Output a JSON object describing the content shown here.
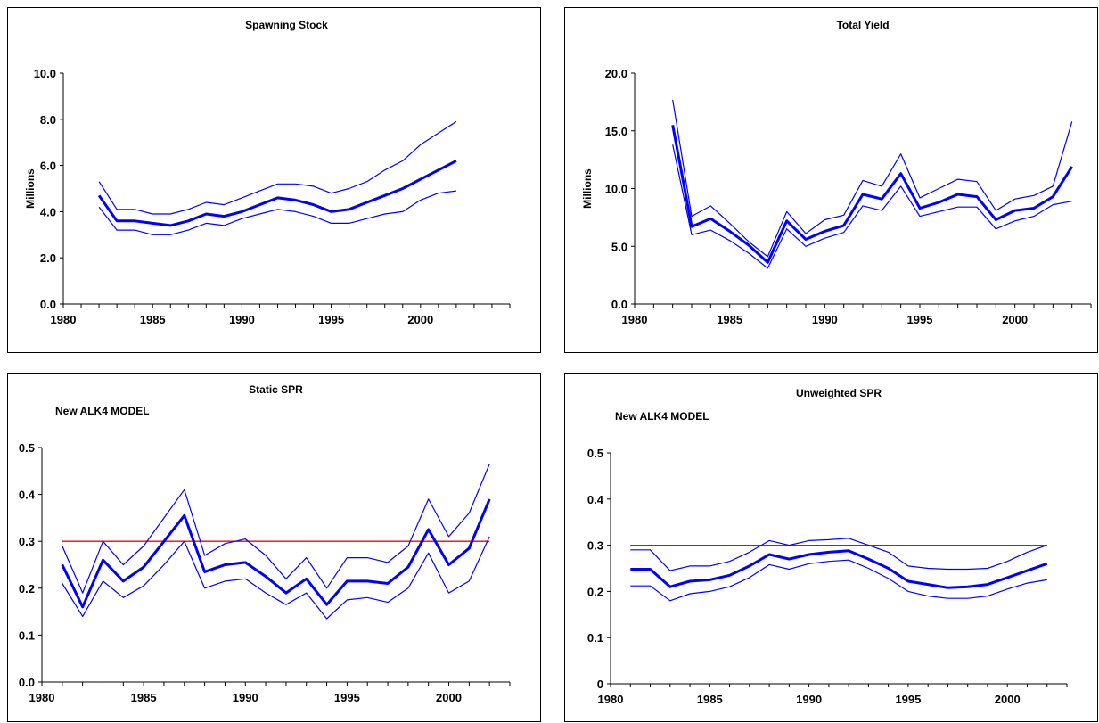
{
  "chart_data": [
    {
      "type": "line",
      "title": "Spawning Stock",
      "ylabel": "Millions",
      "annotation": "",
      "xlim": [
        1980,
        2005
      ],
      "ylim": [
        0,
        10
      ],
      "xticks": [
        1980,
        1985,
        1990,
        1995,
        2000
      ],
      "yticks": [
        "0.0",
        "2.0",
        "4.0",
        "6.0",
        "8.0",
        "10.0"
      ],
      "x": [
        1982,
        1983,
        1984,
        1985,
        1986,
        1987,
        1988,
        1989,
        1990,
        1991,
        1992,
        1993,
        1994,
        1995,
        1996,
        1997,
        1998,
        1999,
        2000,
        2001,
        2002
      ],
      "series": [
        {
          "role": "upper",
          "color": "#0000ff",
          "width": 1.2,
          "values": [
            5.3,
            4.1,
            4.1,
            3.9,
            3.9,
            4.1,
            4.4,
            4.3,
            4.6,
            4.9,
            5.2,
            5.2,
            5.1,
            4.8,
            5.0,
            5.3,
            5.8,
            6.2,
            6.9,
            7.4,
            7.9
          ]
        },
        {
          "role": "estimate",
          "color": "#0000ff",
          "width": 3,
          "values": [
            4.7,
            3.6,
            3.6,
            3.5,
            3.4,
            3.6,
            3.9,
            3.8,
            4.0,
            4.3,
            4.6,
            4.5,
            4.3,
            4.0,
            4.1,
            4.4,
            4.7,
            5.0,
            5.4,
            5.8,
            6.2
          ]
        },
        {
          "role": "lower",
          "color": "#0000ff",
          "width": 1.2,
          "values": [
            4.2,
            3.2,
            3.2,
            3.0,
            3.0,
            3.2,
            3.5,
            3.4,
            3.7,
            3.9,
            4.1,
            4.0,
            3.8,
            3.5,
            3.5,
            3.7,
            3.9,
            4.0,
            4.5,
            4.8,
            4.9
          ]
        }
      ]
    },
    {
      "type": "line",
      "title": "Total Yield",
      "ylabel": "Millions",
      "annotation": "",
      "xlim": [
        1980,
        2004
      ],
      "ylim": [
        0,
        20
      ],
      "xticks": [
        1980,
        1985,
        1990,
        1995,
        2000
      ],
      "yticks": [
        "0.0",
        "5.0",
        "10.0",
        "15.0",
        "20.0"
      ],
      "x": [
        1982,
        1983,
        1984,
        1985,
        1986,
        1987,
        1988,
        1989,
        1990,
        1991,
        1992,
        1993,
        1994,
        1995,
        1996,
        1997,
        1998,
        1999,
        2000,
        2001,
        2002,
        2003
      ],
      "series": [
        {
          "role": "upper",
          "color": "#0000ff",
          "width": 1.2,
          "values": [
            17.7,
            7.6,
            8.5,
            7.0,
            5.4,
            4.1,
            8.0,
            6.1,
            7.3,
            7.7,
            10.7,
            10.2,
            13.0,
            9.2,
            10.0,
            10.8,
            10.6,
            8.1,
            9.1,
            9.4,
            10.2,
            15.8
          ]
        },
        {
          "role": "estimate",
          "color": "#0000ff",
          "width": 3,
          "values": [
            15.5,
            6.7,
            7.4,
            6.3,
            5.1,
            3.6,
            7.2,
            5.6,
            6.3,
            6.8,
            9.5,
            9.1,
            11.3,
            8.3,
            8.8,
            9.5,
            9.3,
            7.3,
            8.1,
            8.3,
            9.3,
            11.9
          ]
        },
        {
          "role": "lower",
          "color": "#0000ff",
          "width": 1.2,
          "values": [
            13.8,
            6.0,
            6.4,
            5.5,
            4.4,
            3.1,
            6.5,
            5.0,
            5.7,
            6.2,
            8.5,
            8.1,
            10.2,
            7.6,
            8.0,
            8.4,
            8.4,
            6.5,
            7.2,
            7.6,
            8.6,
            8.9
          ]
        }
      ]
    },
    {
      "type": "line",
      "title": "Static SPR",
      "ylabel": "",
      "annotation": "New ALK4 MODEL",
      "xlim": [
        1980,
        2003
      ],
      "ylim": [
        0,
        0.5
      ],
      "xticks": [
        1980,
        1985,
        1990,
        1995,
        2000
      ],
      "yticks": [
        "0.0",
        "0.1",
        "0.2",
        "0.3",
        "0.4",
        "0.5"
      ],
      "x": [
        1981,
        1982,
        1983,
        1984,
        1985,
        1986,
        1987,
        1988,
        1989,
        1990,
        1991,
        1992,
        1993,
        1994,
        1995,
        1996,
        1997,
        1998,
        1999,
        2000,
        2001,
        2002
      ],
      "reference": {
        "y": 0.3,
        "color": "#ff0000"
      },
      "series": [
        {
          "role": "upper",
          "color": "#0000ff",
          "width": 1.2,
          "values": [
            0.29,
            0.19,
            0.3,
            0.25,
            0.29,
            0.35,
            0.41,
            0.27,
            0.295,
            0.305,
            0.27,
            0.22,
            0.265,
            0.2,
            0.265,
            0.265,
            0.255,
            0.29,
            0.39,
            0.31,
            0.36,
            0.465
          ]
        },
        {
          "role": "estimate",
          "color": "#0000ff",
          "width": 3,
          "values": [
            0.25,
            0.16,
            0.26,
            0.215,
            0.245,
            0.3,
            0.355,
            0.235,
            0.25,
            0.255,
            0.225,
            0.19,
            0.22,
            0.165,
            0.215,
            0.215,
            0.21,
            0.245,
            0.325,
            0.25,
            0.285,
            0.39
          ]
        },
        {
          "role": "lower",
          "color": "#0000ff",
          "width": 1.2,
          "values": [
            0.21,
            0.14,
            0.215,
            0.18,
            0.205,
            0.25,
            0.3,
            0.2,
            0.215,
            0.22,
            0.19,
            0.165,
            0.19,
            0.135,
            0.175,
            0.18,
            0.17,
            0.2,
            0.275,
            0.19,
            0.215,
            0.31
          ]
        }
      ]
    },
    {
      "type": "line",
      "title": "Unweighted SPR",
      "ylabel": "",
      "annotation": "New ALK4 MODEL",
      "xlim": [
        1980,
        2003
      ],
      "ylim": [
        0,
        0.5
      ],
      "xticks": [
        1980,
        1985,
        1990,
        1995,
        2000
      ],
      "yticks": [
        "0",
        "0.1",
        "0.2",
        "0.3",
        "0.4",
        "0.5"
      ],
      "x": [
        1981,
        1982,
        1983,
        1984,
        1985,
        1986,
        1987,
        1988,
        1989,
        1990,
        1991,
        1992,
        1993,
        1994,
        1995,
        1996,
        1997,
        1998,
        1999,
        2000,
        2001,
        2002
      ],
      "reference": {
        "y": 0.3,
        "color": "#ff0000"
      },
      "series": [
        {
          "role": "upper",
          "color": "#0000ff",
          "width": 1.2,
          "values": [
            0.29,
            0.29,
            0.245,
            0.255,
            0.255,
            0.265,
            0.285,
            0.31,
            0.3,
            0.31,
            0.312,
            0.315,
            0.3,
            0.285,
            0.255,
            0.25,
            0.248,
            0.248,
            0.25,
            0.265,
            0.285,
            0.3
          ]
        },
        {
          "role": "estimate",
          "color": "#0000ff",
          "width": 3,
          "values": [
            0.248,
            0.248,
            0.21,
            0.222,
            0.225,
            0.235,
            0.255,
            0.28,
            0.27,
            0.28,
            0.285,
            0.288,
            0.27,
            0.25,
            0.222,
            0.215,
            0.208,
            0.21,
            0.215,
            0.23,
            0.245,
            0.26
          ]
        },
        {
          "role": "lower",
          "color": "#0000ff",
          "width": 1.2,
          "values": [
            0.212,
            0.212,
            0.18,
            0.195,
            0.2,
            0.21,
            0.23,
            0.258,
            0.248,
            0.26,
            0.265,
            0.268,
            0.25,
            0.228,
            0.2,
            0.19,
            0.185,
            0.185,
            0.19,
            0.205,
            0.218,
            0.225
          ]
        }
      ]
    }
  ]
}
